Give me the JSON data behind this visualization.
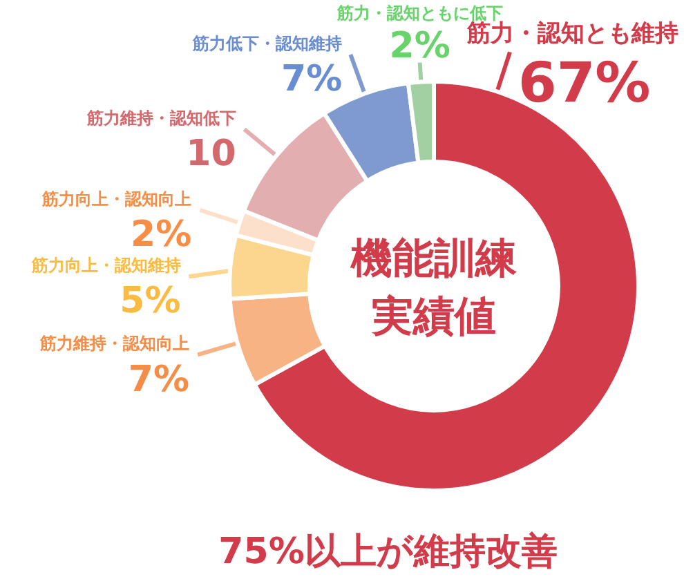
{
  "chart_data": {
    "type": "donut",
    "categories": [
      "筋力・認知とも維持",
      "筋力維持・認知向上",
      "筋力向上・認知維持",
      "筋力向上・認知向上",
      "筋力維持・認知低下",
      "筋力低下・認知維持",
      "筋力・認知ともに低下"
    ],
    "values": [
      67,
      7,
      5,
      2,
      10,
      7,
      2
    ],
    "colors": [
      "#d23c4a",
      "#f8b385",
      "#fcd68e",
      "#fde0cc",
      "#e2aeb0",
      "#7f9acf",
      "#a2d0a3"
    ],
    "value_labels": [
      "67%",
      "7%",
      "5%",
      "2%",
      "10",
      "7%",
      "2%"
    ],
    "annotations": [
      "機能訓練",
      "実績値",
      "75%以上が維持改善"
    ]
  }
}
